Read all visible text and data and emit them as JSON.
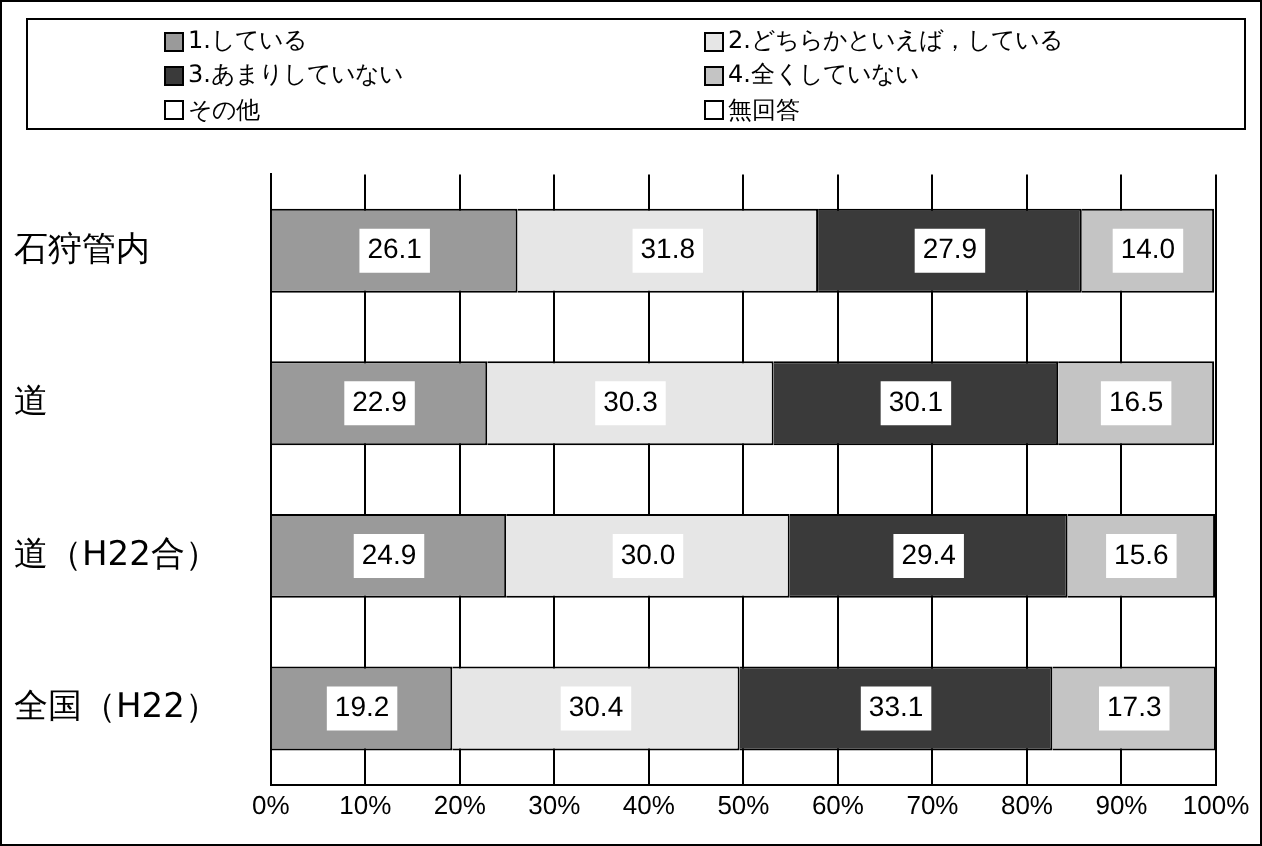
{
  "chart_data": {
    "type": "bar",
    "orientation": "horizontal",
    "stacked": true,
    "categories": [
      "石狩管内",
      "道",
      "道（H22合）",
      "全国（H22）"
    ],
    "series": [
      {
        "name": "1.している",
        "color": "#9a9a9a",
        "values": [
          26.1,
          22.9,
          24.9,
          19.2
        ],
        "value_labels": [
          "26.1",
          "22.9",
          "24.9",
          "19.2"
        ]
      },
      {
        "name": "2.どちらかといえば，している",
        "color": "#e6e6e6",
        "values": [
          31.8,
          30.3,
          30.0,
          30.4
        ],
        "value_labels": [
          "31.8",
          "30.3",
          "30.0",
          "30.4"
        ]
      },
      {
        "name": "3.あまりしていない",
        "color": "#3a3a3a",
        "values": [
          27.9,
          30.1,
          29.4,
          33.1
        ],
        "value_labels": [
          "27.9",
          "30.1",
          "29.4",
          "33.1"
        ]
      },
      {
        "name": "4.全くしていない",
        "color": "#c4c4c4",
        "values": [
          14.0,
          16.5,
          15.6,
          17.3
        ],
        "value_labels": [
          "14.0",
          "16.5",
          "15.6",
          "17.3"
        ]
      },
      {
        "name": "その他",
        "color": "#ffffff",
        "values": [
          0,
          0,
          0,
          0
        ]
      },
      {
        "name": "無回答",
        "color": "#ffffff",
        "values": [
          0,
          0,
          0,
          0
        ]
      }
    ],
    "xlim": [
      0,
      100
    ],
    "xticks": [
      {
        "value": 0,
        "label": "0%"
      },
      {
        "value": 10,
        "label": "10%"
      },
      {
        "value": 20,
        "label": "20%"
      },
      {
        "value": 30,
        "label": "30%"
      },
      {
        "value": 40,
        "label": "40%"
      },
      {
        "value": 50,
        "label": "50%"
      },
      {
        "value": 60,
        "label": "60%"
      },
      {
        "value": 70,
        "label": "70%"
      },
      {
        "value": 80,
        "label": "80%"
      },
      {
        "value": 90,
        "label": "90%"
      },
      {
        "value": 100,
        "label": "100%"
      }
    ],
    "grid": "x",
    "legend": "top"
  }
}
